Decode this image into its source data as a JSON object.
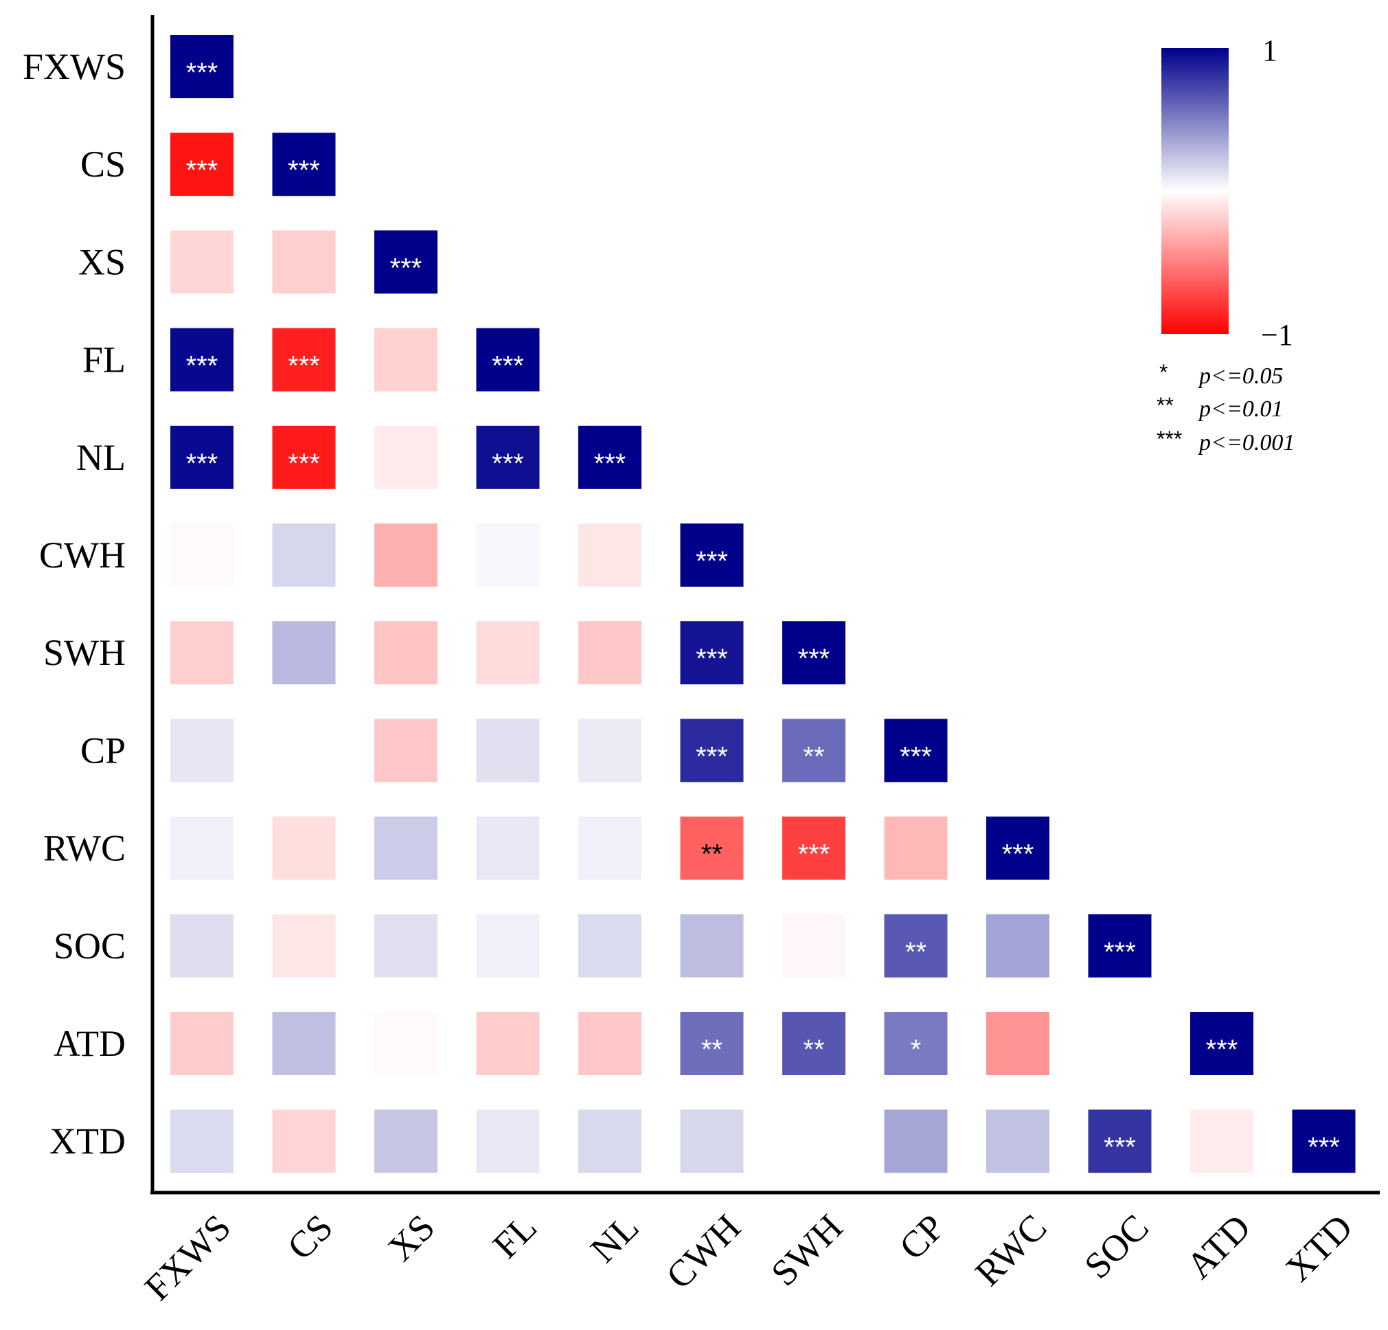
{
  "chart_data": {
    "type": "heatmap",
    "title": "",
    "variables": [
      "FXWS",
      "CS",
      "XS",
      "FL",
      "NL",
      "CWH",
      "SWH",
      "CP",
      "RWC",
      "SOC",
      "ATD",
      "XTD"
    ],
    "matrix": [
      [
        1.0
      ],
      [
        -0.92,
        1.0
      ],
      [
        -0.16,
        -0.19,
        1.0
      ],
      [
        0.97,
        -0.88,
        -0.18,
        1.0
      ],
      [
        0.96,
        -0.9,
        -0.08,
        0.94,
        1.0
      ],
      [
        -0.02,
        0.16,
        -0.31,
        0.03,
        -0.1,
        1.0
      ],
      [
        -0.19,
        0.27,
        -0.23,
        -0.14,
        -0.22,
        0.92,
        1.0
      ],
      [
        0.1,
        0.0,
        -0.22,
        0.12,
        0.08,
        0.83,
        0.58,
        1.0
      ],
      [
        0.06,
        -0.13,
        0.2,
        0.09,
        0.06,
        -0.62,
        -0.75,
        -0.28,
        1.0
      ],
      [
        0.13,
        -0.1,
        0.12,
        0.06,
        0.14,
        0.26,
        -0.03,
        0.65,
        0.36,
        1.0
      ],
      [
        -0.2,
        0.25,
        -0.02,
        -0.2,
        -0.22,
        0.57,
        0.66,
        0.52,
        -0.42,
        0.0,
        1.0
      ],
      [
        0.14,
        -0.17,
        0.22,
        0.09,
        0.15,
        0.16,
        0.0,
        0.35,
        0.24,
        0.8,
        -0.07,
        1.0
      ]
    ],
    "significance": [
      [
        "***"
      ],
      [
        "***",
        "***"
      ],
      [
        "",
        "",
        "***"
      ],
      [
        "***",
        "***",
        "",
        "***"
      ],
      [
        "***",
        "***",
        "",
        "***",
        "***"
      ],
      [
        "",
        "",
        "",
        "",
        "",
        "***"
      ],
      [
        "",
        "",
        "",
        "",
        "",
        "***",
        "***"
      ],
      [
        "",
        "",
        "",
        "",
        "",
        "***",
        "**",
        "***"
      ],
      [
        "",
        "",
        "",
        "",
        "",
        "**",
        "***",
        "",
        "***"
      ],
      [
        "",
        "",
        "",
        "",
        "",
        "",
        "",
        "**",
        "",
        "***"
      ],
      [
        "",
        "",
        "",
        "",
        "",
        "**",
        "**",
        "*",
        "",
        "",
        "***"
      ],
      [
        "",
        "",
        "",
        "",
        "",
        "",
        "",
        "",
        "",
        "***",
        "",
        "***"
      ]
    ],
    "colorbar": {
      "max_label": "1",
      "min_label": "−1",
      "max_color": "#00008B",
      "mid_color": "#FFFFFF",
      "min_color": "#FF0000"
    },
    "significance_legend": [
      {
        "stars": "*",
        "text": "p<=0.05"
      },
      {
        "stars": "**",
        "text": "p<=0.01"
      },
      {
        "stars": "***",
        "text": "p<=0.001"
      }
    ],
    "star_color_light": "#FFFFFF",
    "star_color_dark": "#000000"
  }
}
